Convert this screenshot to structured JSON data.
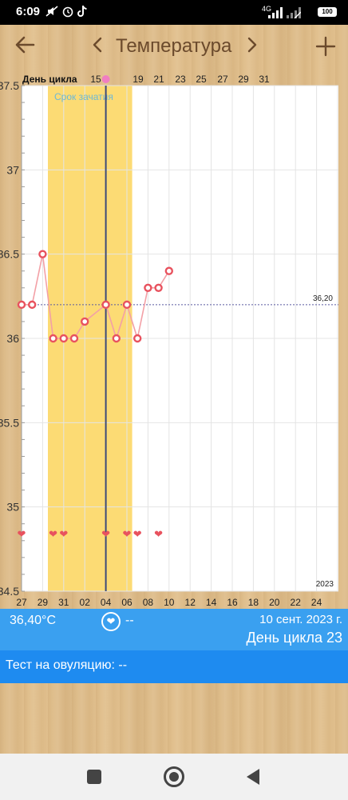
{
  "status_bar": {
    "time": "6:09",
    "icons": [
      "mute-icon",
      "alarm-icon",
      "tiktok-icon"
    ],
    "network_label": "4G",
    "battery": "100"
  },
  "toolbar": {
    "back_icon": "arrow-left-icon",
    "title": "Температура",
    "prev_icon": "chevron-left-icon",
    "next_icon": "chevron-right-icon",
    "add_icon": "plus-icon"
  },
  "chart": {
    "cycle_day_label": "День цикла",
    "fertile_label": "Срок зачатия",
    "year_label": "2023",
    "baseline_label": "36,20",
    "y_tick_labels": [
      "37.5",
      "37",
      "36.5",
      "36",
      "35.5",
      "35",
      "34.5"
    ],
    "cycle_day_ticks": [
      "15",
      "19",
      "21",
      "23",
      "25",
      "27",
      "29",
      "31"
    ],
    "date_ticks": [
      "27",
      "29",
      "31",
      "02",
      "04",
      "06",
      "08",
      "10",
      "12",
      "14",
      "16",
      "18",
      "20",
      "22",
      "24"
    ],
    "colors": {
      "fertile": "#fcdb74",
      "marker": "#e8525e",
      "line": "#f3a0a6",
      "baseline": "#5a5aa0",
      "cursor": "#3c4a7a"
    }
  },
  "chart_data": {
    "type": "line",
    "ylim": [
      34.5,
      37.5
    ],
    "y_ticks": [
      37.5,
      37,
      36.5,
      36,
      35.5,
      35,
      34.5
    ],
    "x_dates": [
      "27",
      "28",
      "29",
      "30",
      "31",
      "01",
      "02",
      "03",
      "04",
      "05",
      "06",
      "07",
      "08",
      "09",
      "10"
    ],
    "temperatures": [
      36.2,
      36.2,
      36.5,
      36.0,
      36.0,
      36.0,
      36.1,
      null,
      36.2,
      36.0,
      36.2,
      36.0,
      36.3,
      36.3,
      36.4
    ],
    "heart_dates": [
      "27",
      "30",
      "31",
      "04",
      "06",
      "07",
      "09"
    ],
    "baseline": 36.2,
    "fertile_window": [
      "30",
      "06"
    ],
    "selected_date": "04",
    "ovulation_cycle_day": "17"
  },
  "info": {
    "temperature": "36,40°C",
    "heart_icon": "heart-icon",
    "ovulation_value": "--",
    "date": "10 сент. 2023 г.",
    "cycle_day": "День цикла 23"
  },
  "test": {
    "text": "Тест на овуляцию: --"
  },
  "nav": {
    "recent_icon": "square-icon",
    "home_icon": "circle-icon",
    "back_icon": "triangle-back-icon"
  }
}
